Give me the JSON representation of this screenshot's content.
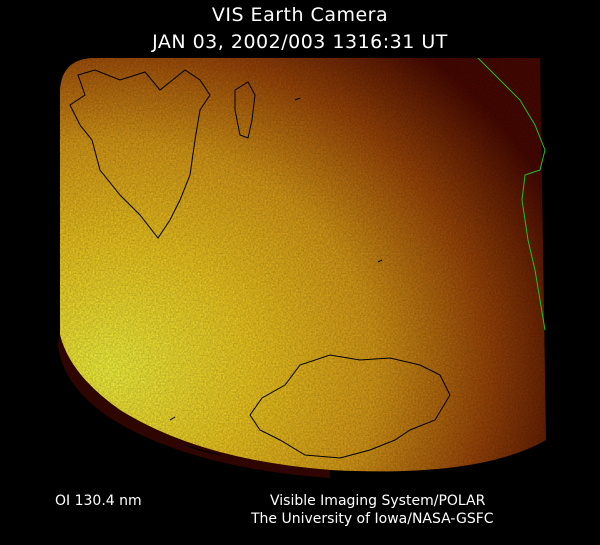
{
  "header": {
    "title": "VIS Earth Camera",
    "timestamp": "JAN 03, 2002/003 1316:31 UT"
  },
  "footer": {
    "band": "OI  130.4 nm",
    "instrument": "Visible Imaging System/POLAR",
    "institution": "The University of Iowa/NASA-GSFC"
  },
  "colors": {
    "background": "#000000",
    "glow_bright": "#ffee30",
    "glow_mid": "#e8a020",
    "glow_dark": "#5a0a00",
    "coastline": "#000000",
    "coastline_edge": "#20c020"
  }
}
